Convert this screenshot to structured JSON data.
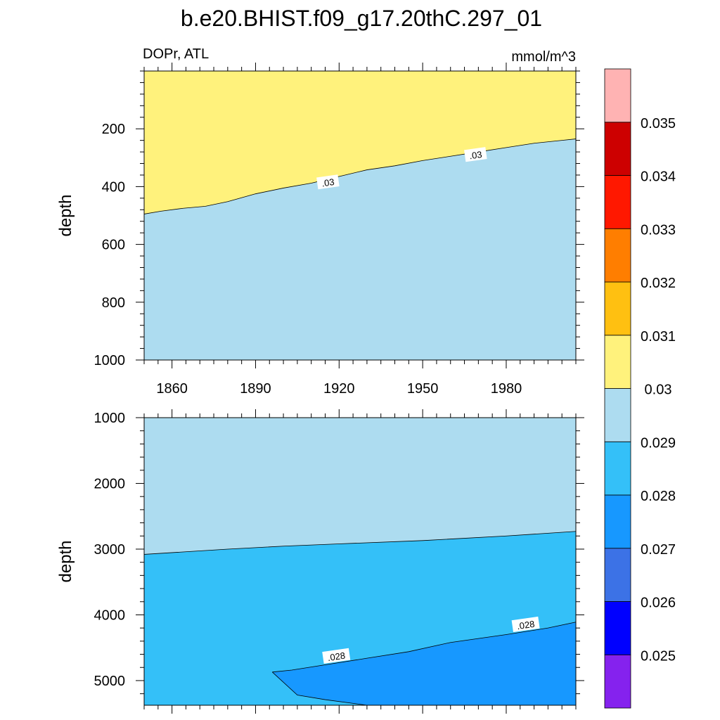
{
  "chart_data": {
    "type": "filled-contour",
    "title": "b.e20.BHIST.f09_g17.20thC.297_01",
    "left_subtitle": "DOPr, ATL",
    "right_subtitle": "mmol/m^3",
    "colorbar": {
      "colors": [
        "#8522ee",
        "#0000ff",
        "#3c72e6",
        "#1798ff",
        "#34c0f8",
        "#addcf0",
        "#fff27c",
        "#ffc011",
        "#ff7e00",
        "#ff1800",
        "#cd0000",
        "#ffb3b3"
      ],
      "levels": [
        "0.025",
        "0.026",
        "0.027",
        "0.028",
        "0.029",
        "0.03",
        "0.031",
        "0.032",
        "0.033",
        "0.034",
        "0.035"
      ]
    },
    "panels": [
      {
        "name": "upper",
        "ylabel": "depth",
        "xlim": [
          1850,
          2005
        ],
        "ylim": [
          0,
          1000
        ],
        "x_ticks": [
          1860,
          1890,
          1920,
          1950,
          1980
        ],
        "x_tick_labels": [
          "1860",
          "1890",
          "1920",
          "1950",
          "1980"
        ],
        "y_ticks": [
          200,
          400,
          600,
          800,
          1000
        ],
        "y_tick_labels": [
          "200",
          "400",
          "600",
          "800",
          "1000"
        ],
        "background_level": 5,
        "regions": [
          {
            "level": 6,
            "boundary": [
              [
                1850,
                495
              ],
              [
                1856,
                485
              ],
              [
                1864,
                475
              ],
              [
                1872,
                468
              ],
              [
                1880,
                452
              ],
              [
                1890,
                425
              ],
              [
                1900,
                405
              ],
              [
                1910,
                388
              ],
              [
                1920,
                365
              ],
              [
                1930,
                342
              ],
              [
                1940,
                328
              ],
              [
                1950,
                310
              ],
              [
                1960,
                295
              ],
              [
                1970,
                280
              ],
              [
                1980,
                265
              ],
              [
                1990,
                250
              ],
              [
                2000,
                240
              ],
              [
                2005,
                235
              ]
            ],
            "closes_to": "top"
          }
        ],
        "contour_labels": [
          {
            "x": 1916,
            "y": 385,
            "text": ".03"
          },
          {
            "x": 1969,
            "y": 290,
            "text": ".03"
          }
        ]
      },
      {
        "name": "lower",
        "ylabel": "depth",
        "xlim": [
          1850,
          2005
        ],
        "ylim": [
          1000,
          5375
        ],
        "x_ticks": [
          1860,
          1890,
          1920,
          1950,
          1980
        ],
        "x_tick_labels": [],
        "y_ticks": [
          1000,
          2000,
          3000,
          4000,
          5000
        ],
        "y_tick_labels": [
          "1000",
          "2000",
          "3000",
          "4000",
          "5000"
        ],
        "background_level": 5,
        "regions": [
          {
            "level": 4,
            "boundary": [
              [
                1850,
                3080
              ],
              [
                1880,
                3000
              ],
              [
                1900,
                2955
              ],
              [
                1920,
                2920
              ],
              [
                1950,
                2870
              ],
              [
                1980,
                2800
              ],
              [
                2005,
                2730
              ]
            ],
            "closes_to": "bottom"
          },
          {
            "level": 3,
            "boundary": [
              [
                1896,
                4870
              ],
              [
                1903,
                4840
              ],
              [
                1915,
                4760
              ],
              [
                1930,
                4660
              ],
              [
                1945,
                4560
              ],
              [
                1960,
                4420
              ],
              [
                1980,
                4300
              ],
              [
                1995,
                4200
              ],
              [
                2005,
                4110
              ],
              [
                2005,
                5375
              ],
              [
                1930,
                5375
              ],
              [
                1915,
                5290
              ],
              [
                1905,
                5220
              ],
              [
                1896,
                4870
              ]
            ],
            "closes_to": "none"
          }
        ],
        "contour_labels": [
          {
            "x": 1919,
            "y": 4630,
            "text": ".028"
          },
          {
            "x": 1987,
            "y": 4150,
            "text": ".028"
          }
        ]
      }
    ]
  }
}
